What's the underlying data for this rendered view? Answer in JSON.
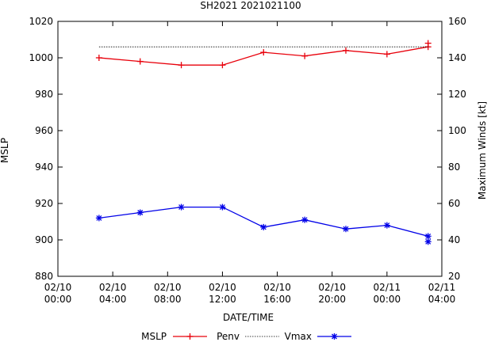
{
  "chart_data": {
    "type": "line",
    "title": "SH2021 2021021100",
    "xlabel": "DATE/TIME",
    "ylabel": "MSLP",
    "y2label": "Maximum Winds [kt]",
    "x_ticks": [
      {
        "line1": "02/10",
        "line2": "00:00",
        "hours": 0
      },
      {
        "line1": "02/10",
        "line2": "04:00",
        "hours": 4
      },
      {
        "line1": "02/10",
        "line2": "08:00",
        "hours": 8
      },
      {
        "line1": "02/10",
        "line2": "12:00",
        "hours": 12
      },
      {
        "line1": "02/10",
        "line2": "16:00",
        "hours": 16
      },
      {
        "line1": "02/10",
        "line2": "20:00",
        "hours": 20
      },
      {
        "line1": "02/11",
        "line2": "00:00",
        "hours": 24
      },
      {
        "line1": "02/11",
        "line2": "04:00",
        "hours": 28
      }
    ],
    "xlim_hours": [
      0,
      28
    ],
    "ylim": [
      880,
      1020
    ],
    "y_ticks": [
      880,
      900,
      920,
      940,
      960,
      980,
      1000,
      1020
    ],
    "y2lim": [
      20,
      160
    ],
    "y2_ticks": [
      20,
      40,
      60,
      80,
      100,
      120,
      140,
      160
    ],
    "grid": false,
    "legend_position": "bottom",
    "legend": {
      "mslp": "MSLP",
      "penv": "Penv",
      "vmax": "Vmax"
    },
    "series": [
      {
        "name": "MSLP",
        "axis": "left",
        "color": "#e8000b",
        "marker": "plus",
        "line": "solid",
        "x_hours": [
          3,
          6,
          9,
          12,
          15,
          18,
          21,
          24,
          27,
          27
        ],
        "values": [
          1000,
          998,
          996,
          996,
          1003,
          1001,
          1004,
          1002,
          1006,
          1008
        ]
      },
      {
        "name": "Penv",
        "axis": "left",
        "color": "#000000",
        "marker": "none",
        "line": "dotted",
        "x_hours": [
          3,
          27
        ],
        "values": [
          1006,
          1006
        ]
      },
      {
        "name": "Vmax",
        "axis": "right",
        "color": "#0000e8",
        "marker": "star",
        "line": "solid",
        "x_hours": [
          3,
          6,
          9,
          12,
          15,
          18,
          21,
          24,
          27,
          27
        ],
        "values": [
          52,
          55,
          58,
          58,
          47,
          51,
          46,
          48,
          42,
          39
        ]
      }
    ]
  }
}
